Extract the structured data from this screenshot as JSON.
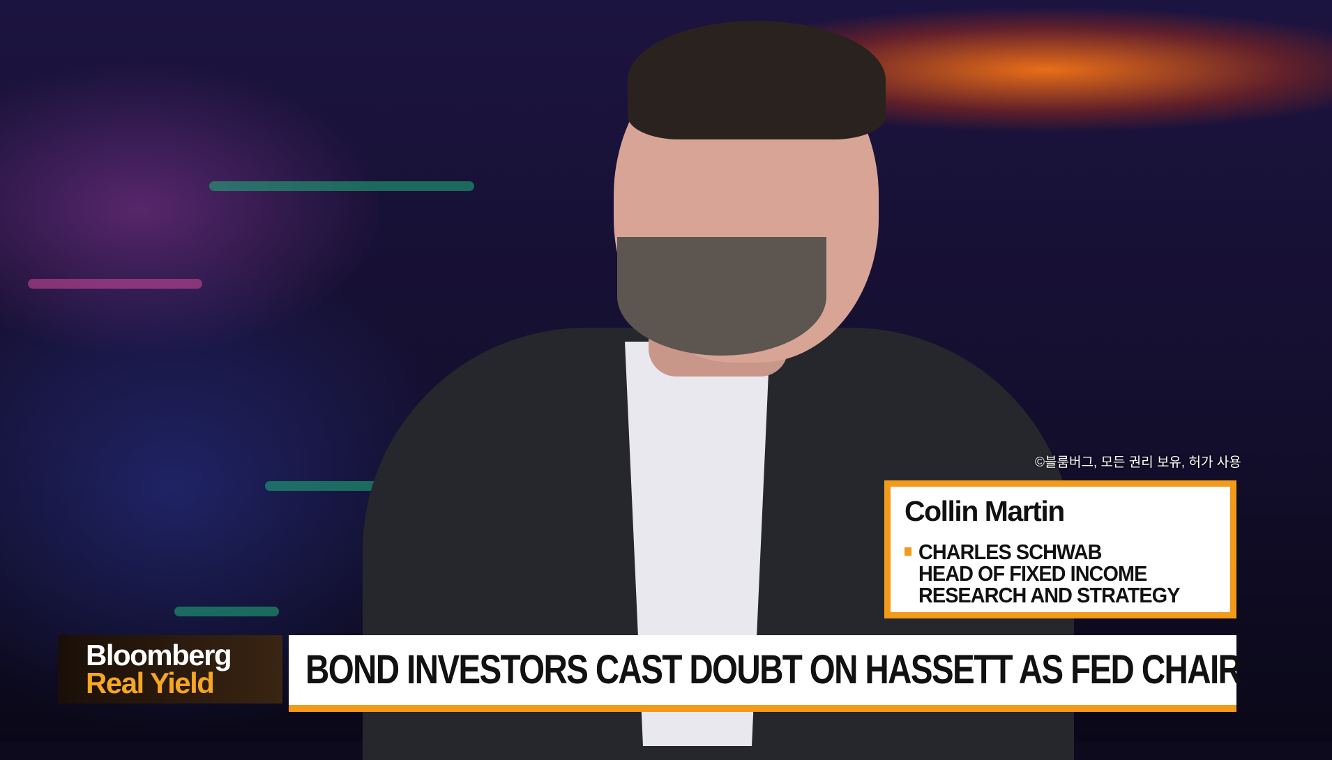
{
  "copyright": "©블룸버그, 모든 권리 보유, 허가 사용",
  "lower_third": {
    "name": "Collin Martin",
    "title_lines": [
      "CHARLES SCHWAB",
      "HEAD OF FIXED INCOME",
      "RESEARCH AND STRATEGY"
    ]
  },
  "logo": {
    "line1": "Bloomberg",
    "line2": "Real Yield"
  },
  "headline": "BOND INVESTORS CAST DOUBT ON HASSETT AS FED CHAIR",
  "colors": {
    "accent": "#f39a1a",
    "logo_yellow": "#f5a623"
  }
}
